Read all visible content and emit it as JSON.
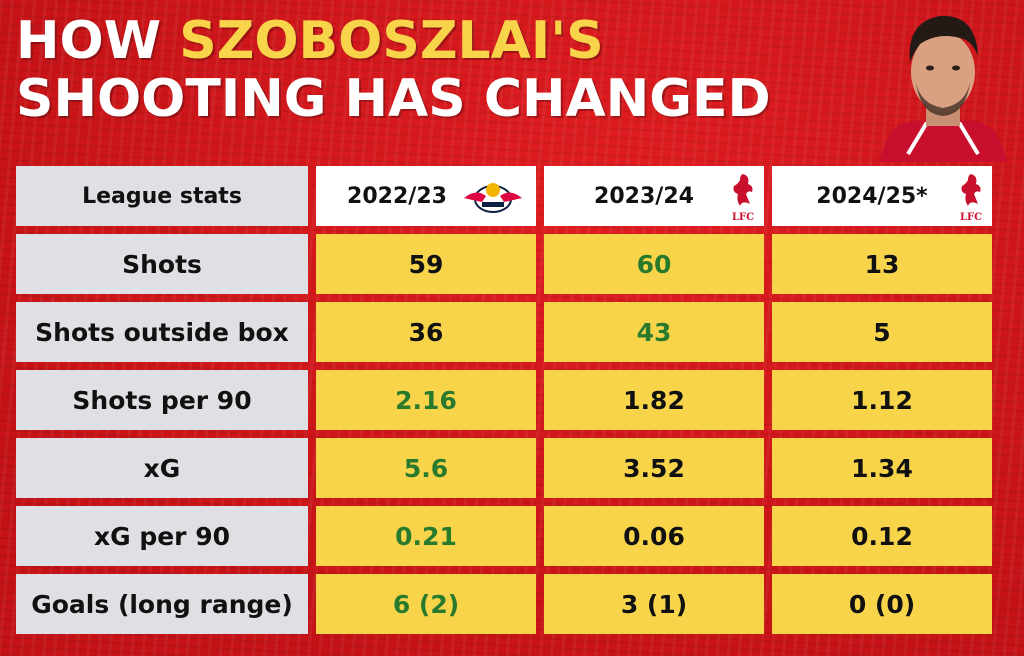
{
  "title": {
    "line1_prefix": "HOW ",
    "line1_highlight": "SZOBOSZLAI'S",
    "line2": "SHOOTING HAS CHANGED"
  },
  "colors": {
    "background": "#d3161a",
    "label_cell": "#dfe0e4",
    "value_cell": "#f7d44a",
    "highlight_text": "#f7d44a",
    "best_value": "#2a7a2e"
  },
  "table": {
    "headers": [
      "League stats",
      "2022/23",
      "2023/24",
      "2024/25*"
    ],
    "header_logos": [
      "",
      "rb-leipzig-logo",
      "liverpool-fc-logo",
      "liverpool-fc-logo"
    ],
    "lfc_text": "LFC",
    "rows": [
      {
        "label": "Shots",
        "values": [
          "59",
          "60",
          "13"
        ],
        "highlight": [
          false,
          true,
          false
        ]
      },
      {
        "label": "Shots outside box",
        "values": [
          "36",
          "43",
          "5"
        ],
        "highlight": [
          false,
          true,
          false
        ]
      },
      {
        "label": "Shots per 90",
        "values": [
          "2.16",
          "1.82",
          "1.12"
        ],
        "highlight": [
          true,
          false,
          false
        ]
      },
      {
        "label": "xG",
        "values": [
          "5.6",
          "3.52",
          "1.34"
        ],
        "highlight": [
          true,
          false,
          false
        ]
      },
      {
        "label": "xG per 90",
        "values": [
          "0.21",
          "0.06",
          "0.12"
        ],
        "highlight": [
          true,
          false,
          false
        ]
      },
      {
        "label": "Goals (long range)",
        "values": [
          "6 (2)",
          "3 (1)",
          "0 (0)"
        ],
        "highlight": [
          true,
          false,
          false
        ]
      }
    ]
  }
}
